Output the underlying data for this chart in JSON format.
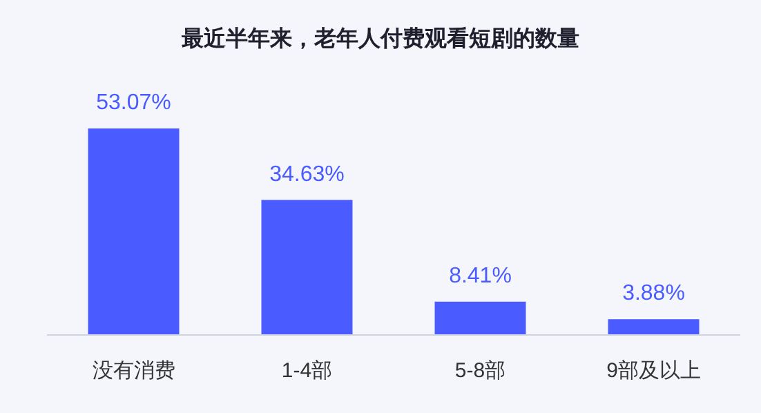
{
  "chart_data": {
    "type": "bar",
    "title": "最近半年来，老年人付费观看短剧的数量",
    "categories": [
      "没有消费",
      "1-4部",
      "5-8部",
      "9部及以上"
    ],
    "values": [
      53.07,
      34.63,
      8.41,
      3.88
    ],
    "value_labels": [
      "53.07%",
      "34.63%",
      "8.41%",
      "3.88%"
    ],
    "color": "#4a5cff"
  }
}
